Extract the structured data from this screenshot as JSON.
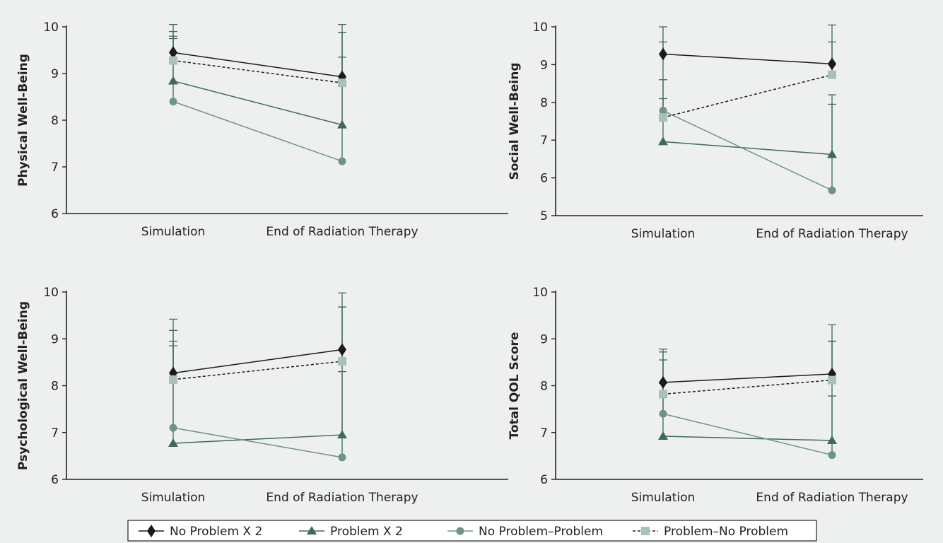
{
  "colors": {
    "background": "#eef0ef",
    "axis": "#222222",
    "no_problem_x2": "#1b1b1b",
    "problem_x2": "#3f6b55",
    "no_problem_problem": "#6e9484",
    "problem_no_problem": "#a9c2b6"
  },
  "legend": {
    "items": [
      {
        "label": "No Problem X 2",
        "marker": "diamond"
      },
      {
        "label": "Problem X 2",
        "marker": "triangle"
      },
      {
        "label": "No Problem–Problem",
        "marker": "circle"
      },
      {
        "label": "Problem–No Problem",
        "marker": "square"
      }
    ]
  },
  "chart_data": [
    {
      "type": "line",
      "title": "",
      "ylabel": "Physical Well-Being",
      "categories": [
        "Simulation",
        "End of Radiation Therapy"
      ],
      "ylim": [
        6,
        10
      ],
      "yticks": [
        6,
        7,
        8,
        9,
        10
      ],
      "series": [
        {
          "name": "No Problem X 2",
          "values": [
            9.45,
            8.93
          ],
          "err_upper": [
            10.05,
            10.05
          ],
          "dashed": false
        },
        {
          "name": "Problem X 2",
          "values": [
            8.84,
            7.9
          ],
          "err_upper": [
            9.9,
            9.88
          ],
          "dashed": false
        },
        {
          "name": "No Problem–Problem",
          "values": [
            8.4,
            7.12
          ],
          "err_upper": [
            9.75,
            9.35
          ],
          "dashed": false
        },
        {
          "name": "Problem–No Problem",
          "values": [
            9.28,
            8.8
          ],
          "err_upper": [
            9.8,
            9.88
          ],
          "dashed": true
        }
      ]
    },
    {
      "type": "line",
      "title": "",
      "ylabel": "Social Well-Being",
      "categories": [
        "Simulation",
        "End of Radiation Therapy"
      ],
      "ylim": [
        5,
        10
      ],
      "yticks": [
        5,
        6,
        7,
        8,
        9,
        10
      ],
      "series": [
        {
          "name": "No Problem X 2",
          "values": [
            9.28,
            9.02
          ],
          "err_upper": [
            10.0,
            10.05
          ],
          "dashed": false
        },
        {
          "name": "Problem X 2",
          "values": [
            6.96,
            6.62
          ],
          "err_upper": [
            8.6,
            8.2
          ],
          "dashed": false
        },
        {
          "name": "No Problem–Problem",
          "values": [
            7.78,
            5.67
          ],
          "err_upper": [
            9.6,
            7.95
          ],
          "dashed": false
        },
        {
          "name": "Problem–No Problem",
          "values": [
            7.6,
            8.73
          ],
          "err_upper": [
            8.1,
            9.6
          ],
          "dashed": true
        }
      ]
    },
    {
      "type": "line",
      "title": "",
      "ylabel": "Psychological Well-Being",
      "categories": [
        "Simulation",
        "End of Radiation Therapy"
      ],
      "ylim": [
        6,
        10
      ],
      "yticks": [
        6,
        7,
        8,
        9,
        10
      ],
      "series": [
        {
          "name": "No Problem X 2",
          "values": [
            8.27,
            8.77
          ],
          "err_upper": [
            9.42,
            9.98
          ],
          "dashed": false
        },
        {
          "name": "Problem X 2",
          "values": [
            6.77,
            6.95
          ],
          "err_upper": [
            8.85,
            8.3
          ],
          "dashed": false
        },
        {
          "name": "No Problem–Problem",
          "values": [
            7.1,
            6.47
          ],
          "err_upper": [
            9.18,
            9.68
          ],
          "dashed": false
        },
        {
          "name": "Problem–No Problem",
          "values": [
            8.13,
            8.52
          ],
          "err_upper": [
            8.95,
            9.68
          ],
          "dashed": true
        }
      ]
    },
    {
      "type": "line",
      "title": "",
      "ylabel": "Total QOL Score",
      "categories": [
        "Simulation",
        "End of Radiation Therapy"
      ],
      "ylim": [
        6,
        10
      ],
      "yticks": [
        6,
        7,
        8,
        9,
        10
      ],
      "series": [
        {
          "name": "No Problem X 2",
          "values": [
            8.07,
            8.25
          ],
          "err_upper": [
            8.78,
            9.3
          ],
          "dashed": false
        },
        {
          "name": "Problem X 2",
          "values": [
            6.92,
            6.83
          ],
          "err_upper": [
            8.05,
            7.78
          ],
          "dashed": false
        },
        {
          "name": "No Problem–Problem",
          "values": [
            7.4,
            6.52
          ],
          "err_upper": [
            8.72,
            8.95
          ],
          "dashed": false
        },
        {
          "name": "Problem–No Problem",
          "values": [
            7.82,
            8.12
          ],
          "err_upper": [
            8.55,
            8.95
          ],
          "dashed": true
        }
      ]
    }
  ]
}
